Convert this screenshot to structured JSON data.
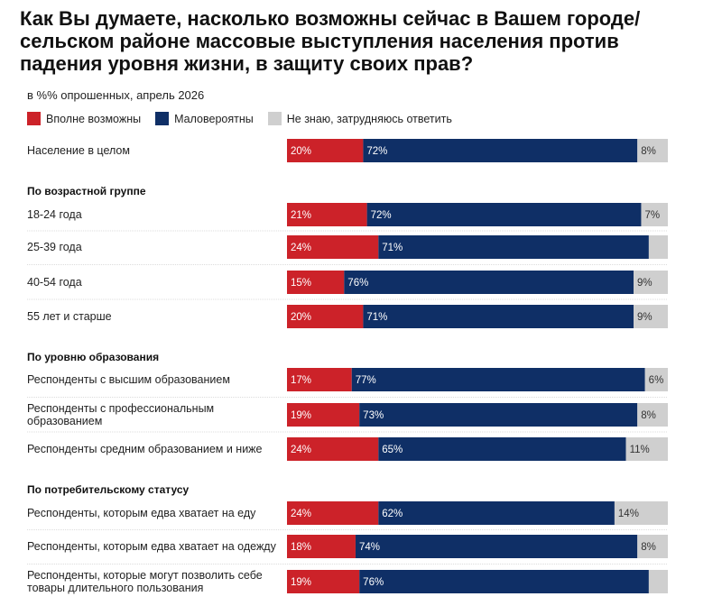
{
  "title": "Как Вы думаете, насколько возможны сейчас в Вашем городе/ сельском районе массовые выступления населения против падения уровня жизни, в защиту своих прав?",
  "subtitle": "в %% опрошенных, апрель 2026",
  "legend": [
    {
      "label": "Вполне возможны",
      "color": "#cc2229"
    },
    {
      "label": "Маловероятны",
      "color": "#0f2f66"
    },
    {
      "label": "Не знаю, затрудняюсь ответить",
      "color": "#cfcfcf"
    }
  ],
  "chart_data": {
    "type": "bar",
    "orientation": "horizontal",
    "stacked": true,
    "unit": "%",
    "series": [
      {
        "name": "Вполне возможны",
        "color": "#cc2229",
        "label_color": "#ffffff"
      },
      {
        "name": "Маловероятны",
        "color": "#0f2f66",
        "label_color": "#ffffff"
      },
      {
        "name": "Не знаю, затрудняюсь ответить",
        "color": "#cfcfcf",
        "label_color": "#333333"
      }
    ],
    "rows": [
      {
        "kind": "row",
        "lines": [
          "Население в целом"
        ],
        "values": [
          20,
          72,
          8
        ],
        "labels": [
          "20%",
          "72%",
          "8%"
        ]
      },
      {
        "kind": "group",
        "lines": [
          "По возрастной группе"
        ]
      },
      {
        "kind": "row",
        "lines": [
          "18-24 года"
        ],
        "values": [
          21,
          72,
          7
        ],
        "labels": [
          "21%",
          "72%",
          "7%"
        ]
      },
      {
        "kind": "row",
        "lines": [
          "25-39 года"
        ],
        "values": [
          24,
          71,
          5
        ],
        "labels": [
          "24%",
          "71%",
          ""
        ]
      },
      {
        "kind": "row",
        "lines": [
          "40-54 года"
        ],
        "values": [
          15,
          76,
          9
        ],
        "labels": [
          "15%",
          "76%",
          "9%"
        ]
      },
      {
        "kind": "row",
        "lines": [
          "55 лет и старше"
        ],
        "values": [
          20,
          71,
          9
        ],
        "labels": [
          "20%",
          "71%",
          "9%"
        ]
      },
      {
        "kind": "group",
        "lines": [
          "По уровню образования"
        ]
      },
      {
        "kind": "row",
        "lines": [
          "Респонденты с высшим образованием"
        ],
        "values": [
          17,
          77,
          6
        ],
        "labels": [
          "17%",
          "77%",
          "6%"
        ]
      },
      {
        "kind": "row",
        "lines": [
          "Респонденты с профессиональным",
          "образованием"
        ],
        "values": [
          19,
          73,
          8
        ],
        "labels": [
          "19%",
          "73%",
          "8%"
        ]
      },
      {
        "kind": "row",
        "lines": [
          "Респонденты средним образованием и ниже"
        ],
        "values": [
          24,
          65,
          11
        ],
        "labels": [
          "24%",
          "65%",
          "11%"
        ]
      },
      {
        "kind": "group",
        "lines": [
          "По потребительскому статусу"
        ]
      },
      {
        "kind": "row",
        "lines": [
          "Респонденты, которым едва хватает на еду"
        ],
        "values": [
          24,
          62,
          14
        ],
        "labels": [
          "24%",
          "62%",
          "14%"
        ]
      },
      {
        "kind": "row",
        "lines": [
          "Респонденты, которым едва хватает на одежду"
        ],
        "values": [
          18,
          74,
          8
        ],
        "labels": [
          "18%",
          "74%",
          "8%"
        ]
      },
      {
        "kind": "row",
        "lines": [
          "Респонденты, которые могут позволить себе",
          "товары длительного пользования"
        ],
        "values": [
          19,
          76,
          5
        ],
        "labels": [
          "19%",
          "76%",
          ""
        ]
      }
    ]
  }
}
